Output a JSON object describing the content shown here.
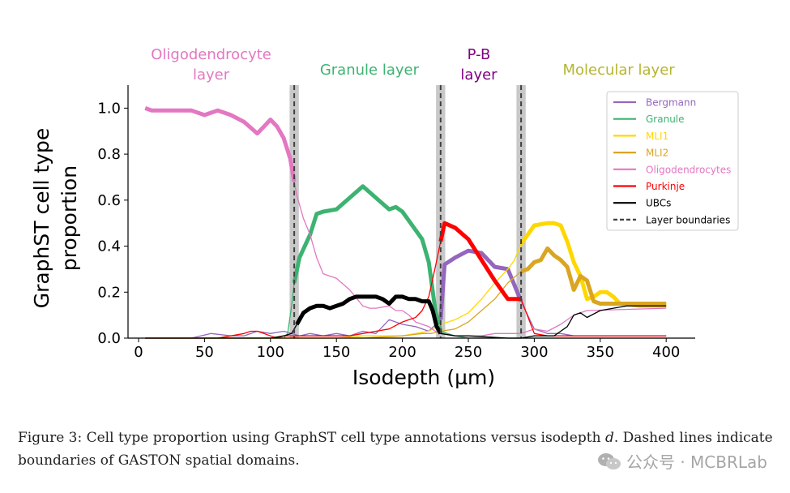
{
  "chart_data": {
    "type": "line",
    "xlabel": "Isodepth (µm)",
    "ylabel": "GraphST cell type proportion",
    "ylabel_lines": [
      "GraphST cell type",
      "proportion"
    ],
    "xlim": [
      -8,
      422
    ],
    "ylim": [
      0,
      1.1
    ],
    "xticks": [
      0,
      50,
      100,
      150,
      200,
      250,
      300,
      350,
      400
    ],
    "yticks": [
      0.0,
      0.2,
      0.4,
      0.6,
      0.8,
      1.0
    ],
    "grid": false,
    "legend_position": "top-right",
    "layer_boundaries": [
      118,
      229,
      290
    ],
    "boundary_band_width": 7,
    "layers": [
      {
        "lines": [
          "Oligodendrocyte",
          "layer"
        ],
        "center_x": 55,
        "color": "#e377c2"
      },
      {
        "lines": [
          "Granule layer"
        ],
        "center_x": 175,
        "color": "#3cb371"
      },
      {
        "lines": [
          "P-B",
          "layer"
        ],
        "center_x": 258,
        "color": "#800080"
      },
      {
        "lines": [
          "Molecular layer"
        ],
        "center_x": 364,
        "color": "#b5b530"
      }
    ],
    "series": [
      {
        "name": "Bergmann",
        "color": "#9467bd",
        "x": [
          5,
          40,
          55,
          70,
          80,
          90,
          100,
          110,
          116,
          122,
          130,
          140,
          150,
          160,
          170,
          180,
          190,
          200,
          210,
          220,
          229,
          232,
          240,
          250,
          260,
          270,
          280,
          290,
          300,
          310,
          320,
          330,
          340,
          350,
          360,
          370,
          380,
          390,
          400
        ],
        "y": [
          0,
          0,
          0.02,
          0.01,
          0.01,
          0.03,
          0.02,
          0.03,
          0.02,
          0.01,
          0.02,
          0.01,
          0.02,
          0.01,
          0.03,
          0.02,
          0.08,
          0.06,
          0.05,
          0.03,
          0.08,
          0.32,
          0.35,
          0.38,
          0.37,
          0.31,
          0.3,
          0.16,
          0.04,
          0.02,
          0.02,
          0.01,
          0.01,
          0.01,
          0.01,
          0.01,
          0.01,
          0.01,
          0.01
        ],
        "thick_ranges": [
          [
            229,
            290
          ]
        ]
      },
      {
        "name": "Granule",
        "color": "#3cb371",
        "x": [
          5,
          60,
          90,
          100,
          110,
          113,
          116,
          118,
          122,
          130,
          135,
          140,
          150,
          160,
          170,
          180,
          190,
          195,
          200,
          210,
          215,
          220,
          225,
          229,
          240,
          250,
          290,
          320,
          400
        ],
        "y": [
          0,
          0,
          0,
          0,
          0,
          0.02,
          0.14,
          0.24,
          0.35,
          0.45,
          0.54,
          0.55,
          0.56,
          0.61,
          0.66,
          0.61,
          0.56,
          0.57,
          0.55,
          0.47,
          0.43,
          0.33,
          0.12,
          0.03,
          0.01,
          0,
          0,
          0,
          0
        ],
        "thick_ranges": [
          [
            118,
            229
          ]
        ]
      },
      {
        "name": "MLI1",
        "color": "#ffd700",
        "x": [
          5,
          150,
          170,
          200,
          210,
          220,
          229,
          240,
          250,
          260,
          270,
          280,
          285,
          290,
          295,
          300,
          310,
          315,
          320,
          325,
          330,
          335,
          340,
          345,
          350,
          355,
          360,
          365,
          370,
          380,
          390,
          400
        ],
        "y": [
          0,
          0,
          0.01,
          0.01,
          0.02,
          0.03,
          0.06,
          0.08,
          0.11,
          0.17,
          0.24,
          0.3,
          0.34,
          0.41,
          0.45,
          0.49,
          0.5,
          0.5,
          0.49,
          0.42,
          0.33,
          0.27,
          0.17,
          0.18,
          0.2,
          0.2,
          0.18,
          0.15,
          0.15,
          0.14,
          0.14,
          0.14
        ],
        "thick_ranges": [
          [
            290,
            400
          ]
        ]
      },
      {
        "name": "MLI2",
        "color": "#daa520",
        "x": [
          5,
          170,
          200,
          215,
          222,
          229,
          240,
          250,
          260,
          270,
          280,
          290,
          295,
          300,
          305,
          310,
          315,
          320,
          325,
          330,
          335,
          340,
          345,
          350,
          360,
          370,
          380,
          390,
          400
        ],
        "y": [
          0,
          0,
          0.01,
          0.02,
          0.02,
          0.03,
          0.04,
          0.07,
          0.12,
          0.17,
          0.24,
          0.29,
          0.3,
          0.33,
          0.34,
          0.39,
          0.36,
          0.34,
          0.31,
          0.21,
          0.27,
          0.25,
          0.16,
          0.15,
          0.15,
          0.15,
          0.15,
          0.15,
          0.15
        ],
        "thick_ranges": [
          [
            290,
            400
          ]
        ]
      },
      {
        "name": "Oligodendrocytes",
        "color": "#e377c2",
        "x": [
          5,
          10,
          20,
          30,
          40,
          50,
          55,
          60,
          65,
          70,
          80,
          90,
          95,
          100,
          105,
          110,
          115,
          118,
          120,
          125,
          130,
          135,
          140,
          150,
          160,
          170,
          175,
          180,
          190,
          195,
          200,
          205,
          210,
          215,
          220,
          225,
          229,
          240,
          250,
          260,
          270,
          280,
          290,
          300,
          310,
          320,
          330,
          340,
          400
        ],
        "y": [
          1.0,
          0.99,
          0.99,
          0.99,
          0.99,
          0.97,
          0.98,
          0.99,
          0.98,
          0.97,
          0.94,
          0.89,
          0.92,
          0.95,
          0.92,
          0.87,
          0.78,
          0.68,
          0.62,
          0.52,
          0.45,
          0.35,
          0.28,
          0.26,
          0.21,
          0.14,
          0.13,
          0.13,
          0.14,
          0.12,
          0.12,
          0.1,
          0.07,
          0.06,
          0.05,
          0.03,
          0.02,
          0.01,
          0.01,
          0.01,
          0.02,
          0.02,
          0.02,
          0.04,
          0.03,
          0.06,
          0.1,
          0.12,
          0.13
        ],
        "thick_ranges": [
          [
            5,
            118
          ]
        ]
      },
      {
        "name": "Purkinje",
        "color": "#ff0000",
        "x": [
          5,
          40,
          60,
          70,
          80,
          85,
          90,
          95,
          100,
          105,
          110,
          116,
          122,
          130,
          140,
          150,
          160,
          170,
          180,
          190,
          200,
          210,
          215,
          220,
          225,
          229,
          232,
          240,
          250,
          260,
          270,
          280,
          290,
          300,
          310,
          320,
          330,
          340,
          350,
          360,
          400
        ],
        "y": [
          0,
          0,
          0,
          0.01,
          0.02,
          0.03,
          0.03,
          0.02,
          0.01,
          0.0,
          0.01,
          0.01,
          0.01,
          0.01,
          0.01,
          0.01,
          0.01,
          0.02,
          0.03,
          0.04,
          0.07,
          0.09,
          0.12,
          0.18,
          0.31,
          0.42,
          0.5,
          0.48,
          0.43,
          0.34,
          0.25,
          0.17,
          0.17,
          0.02,
          0.01,
          0.01,
          0.01,
          0.01,
          0.01,
          0.01,
          0.01
        ],
        "thick_ranges": [
          [
            229,
            290
          ]
        ]
      },
      {
        "name": "UBCs",
        "color": "#000000",
        "x": [
          5,
          100,
          110,
          116,
          120,
          125,
          130,
          135,
          140,
          145,
          150,
          155,
          160,
          165,
          170,
          175,
          180,
          185,
          190,
          195,
          200,
          205,
          210,
          215,
          220,
          223,
          226,
          229,
          240,
          250,
          280,
          290,
          300,
          310,
          315,
          320,
          325,
          330,
          335,
          340,
          350,
          360,
          370,
          380,
          390,
          400
        ],
        "y": [
          0,
          0,
          0.01,
          0.02,
          0.06,
          0.11,
          0.13,
          0.14,
          0.14,
          0.13,
          0.14,
          0.15,
          0.17,
          0.18,
          0.18,
          0.18,
          0.18,
          0.17,
          0.15,
          0.18,
          0.18,
          0.17,
          0.17,
          0.16,
          0.16,
          0.12,
          0.05,
          0.02,
          0.01,
          0.01,
          0.0,
          0.0,
          0.01,
          0.01,
          0.01,
          0.03,
          0.05,
          0.1,
          0.11,
          0.09,
          0.12,
          0.13,
          0.14,
          0.14,
          0.14,
          0.14
        ],
        "thick_ranges": [
          [
            118,
            229
          ]
        ]
      }
    ],
    "legend": [
      {
        "label": "Bergmann",
        "color": "#9467bd",
        "style": "solid"
      },
      {
        "label": "Granule",
        "color": "#3cb371",
        "style": "solid"
      },
      {
        "label": "MLI1",
        "color": "#ffd700",
        "style": "solid"
      },
      {
        "label": "MLI2",
        "color": "#daa520",
        "style": "solid"
      },
      {
        "label": "Oligodendrocytes",
        "color": "#e377c2",
        "style": "solid"
      },
      {
        "label": "Purkinje",
        "color": "#ff0000",
        "style": "solid"
      },
      {
        "label": "UBCs",
        "color": "#000000",
        "style": "solid"
      },
      {
        "label": "Layer boundaries",
        "color": "#404040",
        "style": "dashed"
      }
    ]
  },
  "caption": {
    "prefix": "Figure 3: Cell type proportion using GraphST cell type annotations versus isodepth ",
    "italic": "d",
    "suffix": ". Dashed lines indicate boundaries of GASTON spatial domains."
  },
  "watermark": {
    "text": "公众号 · MCBRLab",
    "icon": "wechat-logo-icon"
  }
}
